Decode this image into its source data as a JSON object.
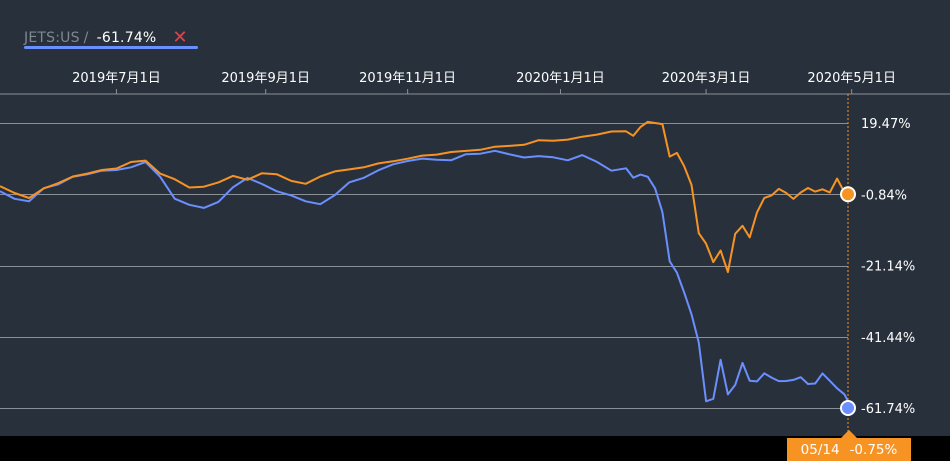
{
  "legend": {
    "ticker": "JETS:US",
    "separator": "/",
    "value": "-61.74%",
    "close_glyph": "✕",
    "close_icon": "close-icon"
  },
  "cursor": {
    "date": "05/14",
    "value": "-0.75%"
  },
  "colors": {
    "series_a": "#f79323",
    "series_b": "#6b8fff",
    "grid": "#8b9097",
    "background": "#28313b"
  },
  "chart_data": {
    "type": "line",
    "x_tick_labels": [
      "2019年7月1日",
      "2019年9月1日",
      "2019年11月1日",
      "2020年1月1日",
      "2020年3月1日",
      "2020年5月1日"
    ],
    "y_tick_labels": [
      "19.47%",
      "-0.84%",
      "-21.14%",
      "-41.44%",
      "-61.74%"
    ],
    "y_ticks": [
      19.47,
      -0.84,
      -21.14,
      -41.44,
      -61.74
    ],
    "xlim": [
      0,
      233
    ],
    "ylim": [
      -61.74,
      19.47
    ],
    "grid": true,
    "x_tick_index": [
      32,
      73,
      112,
      154,
      194,
      234
    ],
    "series": [
      {
        "color": "#f79323",
        "end_value": -0.84,
        "x": [
          0,
          4,
          8,
          12,
          16,
          20,
          24,
          28,
          32,
          36,
          40,
          44,
          48,
          52,
          56,
          60,
          64,
          68,
          72,
          76,
          80,
          84,
          88,
          92,
          96,
          100,
          104,
          108,
          112,
          116,
          120,
          124,
          128,
          132,
          136,
          140,
          144,
          148,
          152,
          156,
          160,
          164,
          168,
          172,
          174,
          176,
          178,
          180,
          182,
          184,
          186,
          188,
          190,
          192,
          194,
          196,
          198,
          200,
          202,
          204,
          206,
          208,
          210,
          212,
          214,
          216,
          218,
          220,
          222,
          224,
          226,
          228,
          230,
          232,
          234
        ],
        "y": [
          1.5,
          -0.5,
          -2.0,
          1.0,
          2.2,
          4.2,
          5.2,
          5.9,
          6.6,
          8.4,
          8.6,
          5.2,
          3.4,
          1.0,
          1.5,
          2.4,
          4.4,
          3.4,
          5.0,
          5.0,
          3.0,
          2.0,
          4.4,
          5.6,
          6.2,
          7.0,
          7.8,
          8.6,
          9.4,
          10.0,
          10.6,
          11.2,
          11.4,
          12.0,
          12.6,
          12.9,
          13.4,
          14.4,
          14.5,
          14.8,
          15.4,
          16.3,
          17.0,
          17.0,
          16.0,
          18.2,
          19.8,
          19.6,
          19.0,
          10.0,
          11.0,
          7.0,
          2.0,
          -12.0,
          -15.0,
          -20.0,
          -17.0,
          -23.0,
          -12.0,
          -10.0,
          -13.0,
          -6.0,
          -2.0,
          -1.0,
          0.6,
          -0.5,
          -2.0,
          -0.5,
          1.0,
          0.0,
          0.4,
          -0.2,
          3.6,
          -0.4,
          -0.84
        ]
      },
      {
        "color": "#6b8fff",
        "end_value": -61.74,
        "x": [
          0,
          4,
          8,
          12,
          16,
          20,
          24,
          28,
          32,
          36,
          40,
          44,
          48,
          52,
          56,
          60,
          64,
          68,
          72,
          76,
          80,
          84,
          88,
          92,
          96,
          100,
          104,
          108,
          112,
          116,
          120,
          124,
          128,
          132,
          136,
          140,
          144,
          148,
          152,
          156,
          160,
          164,
          168,
          172,
          174,
          176,
          178,
          180,
          182,
          184,
          186,
          188,
          190,
          192,
          194,
          196,
          198,
          200,
          202,
          204,
          206,
          208,
          210,
          212,
          214,
          216,
          218,
          220,
          222,
          224,
          226,
          228,
          230,
          232,
          234
        ],
        "y": [
          0.0,
          -2.0,
          -3.0,
          1.0,
          2.0,
          4.0,
          5.0,
          5.8,
          6.0,
          7.0,
          8.2,
          4.2,
          -2.0,
          -4.0,
          -4.6,
          -3.0,
          1.0,
          4.0,
          2.0,
          0.0,
          -1.0,
          -3.0,
          -3.6,
          -1.0,
          2.4,
          4.0,
          6.0,
          7.6,
          8.8,
          9.2,
          9.0,
          9.0,
          10.4,
          10.8,
          11.6,
          10.4,
          9.8,
          10.0,
          9.6,
          9.0,
          10.2,
          8.4,
          6.0,
          6.4,
          4.0,
          4.8,
          4.0,
          1.0,
          -6.0,
          -20.0,
          -23.0,
          -29.0,
          -35.0,
          -43.0,
          -60.0,
          -59.0,
          -48.0,
          -58.0,
          -55.0,
          -49.0,
          -54.0,
          -54.0,
          -52.0,
          -53.0,
          -54.0,
          -54.2,
          -53.6,
          -53.0,
          -55.0,
          -54.6,
          -52.0,
          -54.0,
          -56.0,
          -58.0,
          -61.74
        ]
      }
    ]
  }
}
